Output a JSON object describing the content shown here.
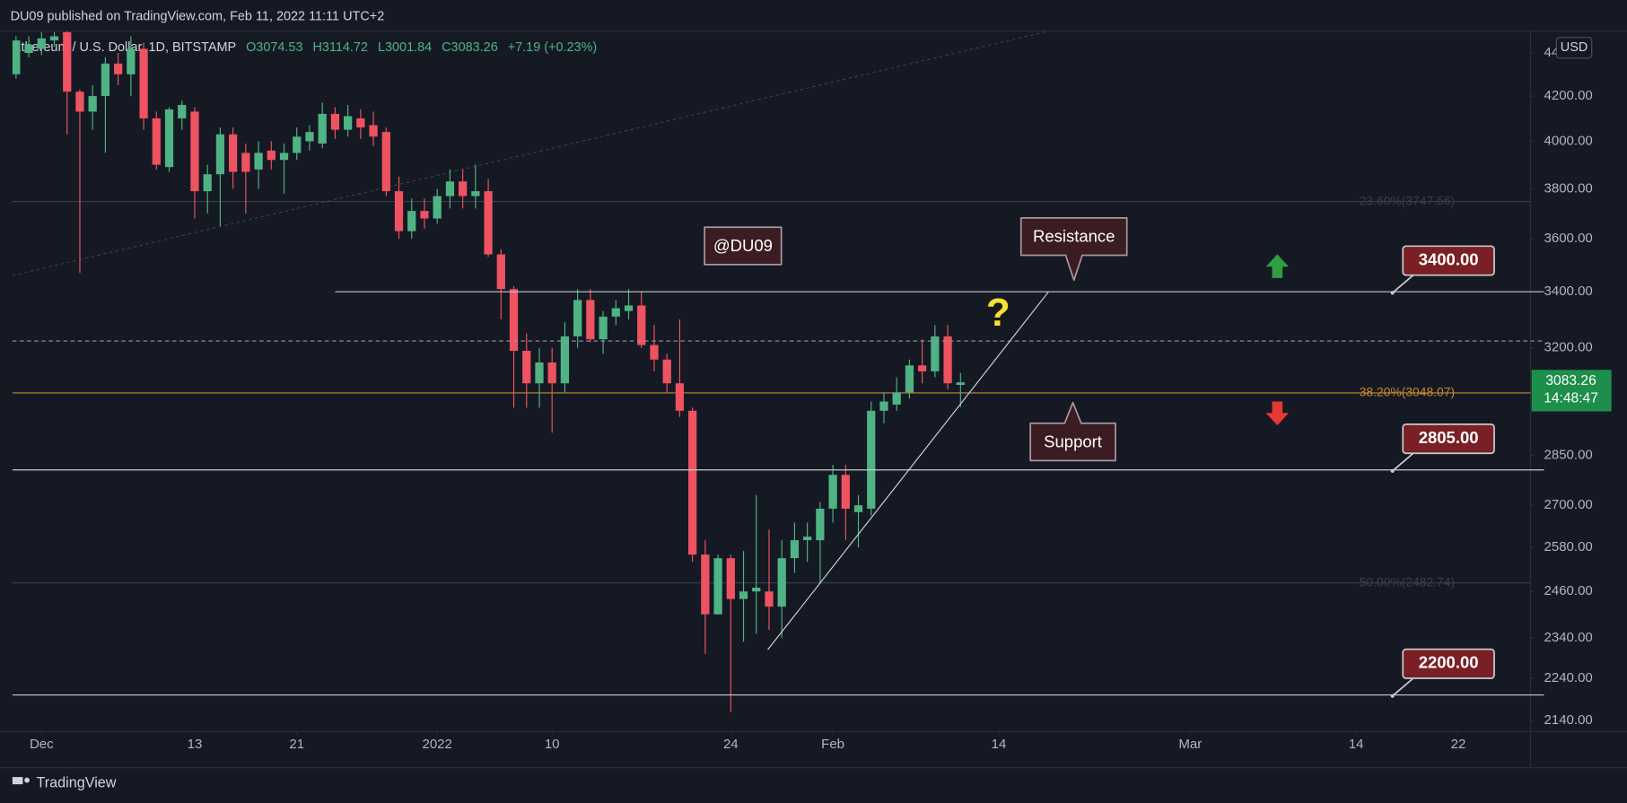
{
  "header": {
    "published": "DU09 published on TradingView.com, Feb 11, 2022 11:11 UTC+2",
    "brand": "TradingView"
  },
  "chart_data": {
    "type": "candlestick",
    "title": "Ethereum / U.S. Dollar, 1D, BITSTAMP",
    "legend_labels": [
      "O3074.53",
      "H3114.72",
      "L3001.84",
      "C3083.26",
      "+7.19 (+0.23%)"
    ],
    "currency": "USD",
    "countdown": "14:48:47",
    "log_scale": true,
    "grid": false,
    "up_color": "#4fb384",
    "down_color": "#ef5261",
    "x": [
      -1,
      0,
      1,
      2,
      3,
      4,
      5,
      6,
      7,
      8,
      9,
      10,
      11,
      12,
      13,
      14,
      15,
      16,
      17,
      18,
      19,
      20,
      21,
      22,
      23,
      24,
      25,
      26,
      27,
      28,
      29,
      30,
      31,
      32,
      33,
      34,
      35,
      36,
      37,
      38,
      39,
      40,
      41,
      42,
      43,
      44,
      45,
      46,
      47,
      48,
      49,
      50,
      51,
      52,
      53,
      54,
      55,
      56,
      57,
      58,
      59,
      60,
      61,
      62,
      63,
      64,
      65,
      66,
      67,
      68,
      69,
      70,
      71,
      72,
      73
    ],
    "open": [
      4300,
      4400,
      4420,
      4460,
      4500,
      4220,
      4130,
      4200,
      4350,
      4300,
      4420,
      4100,
      3890,
      4100,
      4130,
      3790,
      3860,
      4030,
      3950,
      3880,
      3960,
      3920,
      3950,
      4000,
      3990,
      4120,
      4050,
      4100,
      4070,
      4040,
      3790,
      3630,
      3710,
      3680,
      3770,
      3830,
      3770,
      3790,
      3540,
      3410,
      3190,
      3080,
      3150,
      3080,
      3240,
      3370,
      3230,
      3310,
      3330,
      3350,
      3210,
      3160,
      3080,
      2990,
      2560,
      2400,
      2550,
      2440,
      2460,
      2460,
      2420,
      2550,
      2600,
      2600,
      2690,
      2790,
      2680,
      2690,
      2990,
      3010,
      3050,
      3140,
      3120,
      3240,
      3074.53
    ],
    "high": [
      4480,
      4480,
      4500,
      4500,
      4520,
      4230,
      4250,
      4380,
      4400,
      4480,
      4450,
      4130,
      4150,
      4180,
      4150,
      3900,
      4060,
      4060,
      3990,
      4000,
      4000,
      3990,
      4060,
      4070,
      4170,
      4150,
      4160,
      4140,
      4130,
      4060,
      3850,
      3760,
      3760,
      3800,
      3880,
      3880,
      3900,
      3840,
      3560,
      3420,
      3250,
      3200,
      3200,
      3290,
      3410,
      3410,
      3330,
      3370,
      3410,
      3400,
      3280,
      3180,
      3300,
      3000,
      2600,
      2560,
      2560,
      2570,
      2730,
      2630,
      2600,
      2650,
      2650,
      2710,
      2820,
      2820,
      2730,
      3020,
      3050,
      3100,
      3160,
      3230,
      3280,
      3280,
      3114.72
    ],
    "low": [
      4280,
      4380,
      4390,
      4430,
      4030,
      3470,
      4050,
      3950,
      4250,
      4200,
      4050,
      3880,
      3870,
      4050,
      3680,
      3700,
      3650,
      3800,
      3700,
      3800,
      3880,
      3780,
      3920,
      3960,
      3970,
      4010,
      4020,
      4010,
      3980,
      3770,
      3600,
      3600,
      3640,
      3660,
      3720,
      3720,
      3720,
      3530,
      3300,
      3000,
      3000,
      3000,
      2920,
      3050,
      3200,
      3220,
      3180,
      3280,
      3300,
      3200,
      3120,
      3050,
      2970,
      2540,
      2300,
      2400,
      2160,
      2330,
      2350,
      2360,
      2340,
      2510,
      2540,
      2480,
      2650,
      2600,
      2580,
      2670,
      2950,
      2990,
      3030,
      3080,
      3100,
      3060,
      3001.84
    ],
    "close": [
      4460,
      4440,
      4470,
      4480,
      4220,
      4130,
      4200,
      4350,
      4300,
      4420,
      4100,
      3900,
      4140,
      4160,
      3790,
      3860,
      4030,
      3870,
      3870,
      3950,
      3920,
      3950,
      4020,
      4040,
      4120,
      4050,
      4110,
      4060,
      4020,
      3790,
      3630,
      3710,
      3680,
      3770,
      3830,
      3770,
      3790,
      3540,
      3410,
      3190,
      3080,
      3150,
      3080,
      3240,
      3370,
      3230,
      3310,
      3340,
      3350,
      3210,
      3160,
      3080,
      2990,
      2560,
      2400,
      2550,
      2440,
      2460,
      2470,
      2420,
      2550,
      2600,
      2610,
      2690,
      2790,
      2690,
      2700,
      2990,
      3020,
      3050,
      3140,
      3120,
      3240,
      3080,
      3083.26
    ],
    "xlim": [
      -1.28,
      117.66
    ],
    "xticks": [
      {
        "value": 1,
        "label": "Dec"
      },
      13,
      21,
      {
        "value": 32,
        "label": "2022"
      },
      {
        "value": 41,
        "label": "10"
      },
      {
        "value": 55,
        "label": "24"
      },
      {
        "value": 63,
        "label": "Feb"
      },
      {
        "value": 76,
        "label": "14"
      },
      {
        "value": 91,
        "label": "Mar"
      },
      {
        "value": 104,
        "label": "14"
      },
      {
        "value": 112,
        "label": "22"
      }
    ],
    "ylim": [
      2115,
      4505
    ],
    "yticks": [
      {
        "value": 4400,
        "label": "4400.00"
      },
      {
        "value": 4200,
        "label": "4200.00"
      },
      {
        "value": 4000,
        "label": "4000.00"
      },
      {
        "value": 3800,
        "label": "3800.00"
      },
      {
        "value": 3600,
        "label": "3600.00"
      },
      {
        "value": 3400,
        "label": "3400.00"
      },
      {
        "value": 3200,
        "label": "3200.00"
      },
      {
        "value": 3000,
        "label": "3000.00"
      },
      {
        "value": 2850,
        "label": "2850.00"
      },
      {
        "value": 2700,
        "label": "2700.00"
      },
      {
        "value": 2580,
        "label": "2580.00"
      },
      {
        "value": 2460,
        "label": "2460.00"
      },
      {
        "value": 2340,
        "label": "2340.00"
      },
      {
        "value": 2240,
        "label": "2240.00"
      },
      {
        "value": 2140,
        "label": "2140.00"
      }
    ],
    "levels": [
      {
        "value": 3400,
        "label": "3400.00"
      },
      {
        "value": 2805,
        "label": "2805.00"
      },
      {
        "value": 2200,
        "label": "2200.00"
      }
    ],
    "fib_levels": [
      {
        "value": 3747.56,
        "label": "23.60%(3747.56)",
        "color": "#3a3f4c"
      },
      {
        "value": 3048.07,
        "label": "38.20%(3048.07)",
        "color": "#c68a2a"
      },
      {
        "value": 2482.74,
        "label": "50.00%(2482.74)",
        "color": "#3a3f4c"
      }
    ],
    "dashed_level": 3224,
    "trendline": {
      "x": [
        57.9,
        79.9
      ],
      "y": [
        2310,
        3400
      ]
    },
    "channel_line": {
      "x": [
        -1.28,
        79.9
      ],
      "y": [
        3460,
        4505
      ]
    },
    "annotations": {
      "author": "@DU09",
      "resistance": "Resistance",
      "support": "Support",
      "question": "?"
    }
  }
}
